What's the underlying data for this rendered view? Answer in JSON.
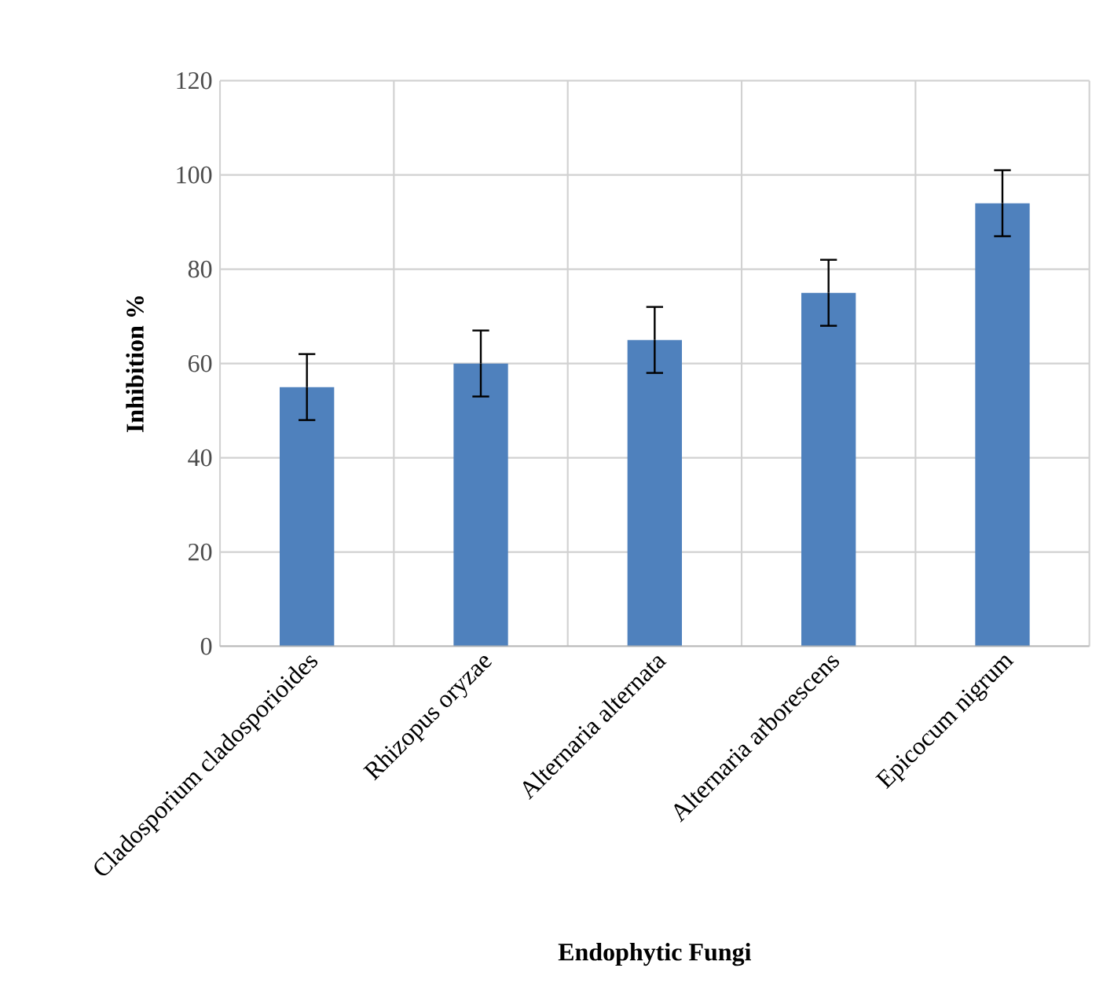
{
  "chart_data": {
    "type": "bar",
    "xlabel": "Endophytic Fungi",
    "ylabel": "Inhibition %",
    "categories": [
      "Cladosporium cladosporioides",
      "Rhizopus oryzae",
      "Alternaria alternata",
      "Alternaria arborescens",
      "Epicocum nigrum"
    ],
    "values": [
      55,
      60,
      65,
      75,
      94
    ],
    "errors": [
      7,
      7,
      7,
      7,
      7
    ],
    "color": "#4f81bd",
    "ylim": [
      0,
      120
    ],
    "yticks": [
      0,
      20,
      40,
      60,
      80,
      100,
      120
    ],
    "grid": true
  }
}
